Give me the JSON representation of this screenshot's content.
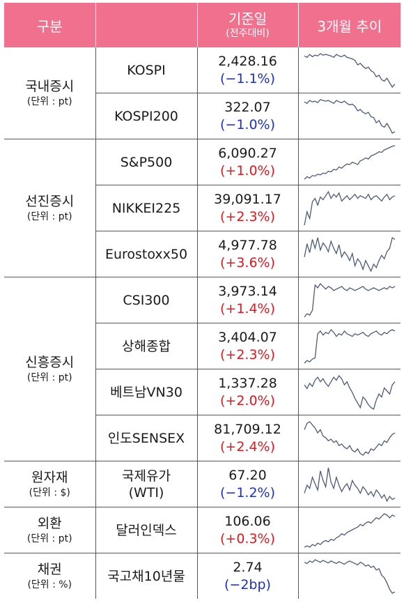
{
  "header": {
    "group_label": "구분",
    "base_label": "기준일",
    "base_sub": "(전주대비)",
    "trend_label": "3개월 추이"
  },
  "groups": {
    "domestic": {
      "name": "국내증시",
      "unit": "(단위 : pt)"
    },
    "developed": {
      "name": "선진증시",
      "unit": "(단위 : pt)"
    },
    "emerging": {
      "name": "신흥증시",
      "unit": "(단위 : pt)"
    },
    "commodity": {
      "name": "원자재",
      "unit": "(단위 : $)"
    },
    "fx": {
      "name": "외환",
      "unit": "(단위 : pt)"
    },
    "bond": {
      "name": "채권",
      "unit": "(단위 : %)"
    }
  },
  "rows": [
    {
      "name": "KOSPI",
      "value": "2,428.16",
      "change": "(−1.1%)",
      "direction": "down",
      "trend": [
        72,
        70,
        74,
        71,
        73,
        72,
        75,
        73,
        74,
        73,
        72,
        70,
        74,
        72,
        71,
        73,
        70,
        69,
        68,
        66,
        60,
        62,
        58,
        55,
        57,
        52,
        50,
        44,
        46,
        40,
        38,
        42,
        36,
        30,
        34
      ]
    },
    {
      "name": "KOSPI200",
      "value": "322.07",
      "change": "(−1.0%)",
      "direction": "down",
      "trend": [
        70,
        68,
        72,
        70,
        71,
        69,
        73,
        72,
        71,
        72,
        70,
        68,
        72,
        70,
        69,
        71,
        68,
        66,
        67,
        64,
        58,
        60,
        56,
        54,
        56,
        50,
        49,
        42,
        45,
        38,
        36,
        41,
        35,
        28,
        30
      ]
    },
    {
      "name": "S&P500",
      "value": "6,090.27",
      "change": "(+1.0%)",
      "direction": "up",
      "trend": [
        20,
        24,
        22,
        26,
        25,
        28,
        27,
        30,
        29,
        33,
        32,
        36,
        35,
        40,
        38,
        42,
        45,
        44,
        48,
        46,
        44,
        50,
        52,
        55,
        53,
        58,
        60,
        62,
        65,
        64,
        68,
        70,
        72,
        74,
        75
      ]
    },
    {
      "name": "NIKKEI225",
      "value": "39,091.17",
      "change": "(+2.3%)",
      "direction": "up",
      "trend": [
        20,
        40,
        30,
        55,
        60,
        50,
        62,
        58,
        64,
        70,
        60,
        66,
        62,
        68,
        56,
        60,
        64,
        58,
        62,
        66,
        60,
        64,
        62,
        60,
        66,
        58,
        62,
        64,
        60,
        56,
        62,
        66,
        58,
        62,
        64
      ]
    },
    {
      "name": "Eurostoxx50",
      "value": "4,977.78",
      "change": "(+3.6%)",
      "direction": "up",
      "trend": [
        40,
        55,
        45,
        60,
        50,
        62,
        48,
        56,
        52,
        46,
        58,
        50,
        44,
        54,
        40,
        46,
        42,
        36,
        44,
        30,
        38,
        34,
        26,
        36,
        30,
        24,
        32,
        28,
        36,
        42,
        38,
        46,
        50,
        62,
        60
      ]
    },
    {
      "name": "CSI300",
      "value": "3,973.14",
      "change": "(+1.4%)",
      "direction": "up",
      "trend": [
        25,
        30,
        28,
        35,
        72,
        68,
        74,
        70,
        66,
        70,
        68,
        64,
        66,
        68,
        70,
        66,
        64,
        68,
        66,
        64,
        66,
        68,
        70,
        66,
        64,
        66,
        68,
        66,
        64,
        66,
        68,
        66,
        70,
        68,
        70
      ]
    },
    {
      "name": "상해종합",
      "value": "3,404.07",
      "change": "(+2.3%)",
      "direction": "up",
      "trend": [
        22,
        26,
        24,
        28,
        30,
        66,
        70,
        64,
        68,
        66,
        72,
        68,
        62,
        66,
        64,
        70,
        66,
        64,
        62,
        66,
        64,
        66,
        68,
        64,
        62,
        66,
        68,
        70,
        66,
        64,
        68,
        66,
        70,
        72,
        70
      ]
    },
    {
      "name": "베트남VN30",
      "value": "1,337.28",
      "change": "(+2.0%)",
      "direction": "up",
      "trend": [
        60,
        55,
        62,
        58,
        66,
        70,
        64,
        68,
        62,
        58,
        64,
        70,
        66,
        72,
        68,
        60,
        64,
        56,
        50,
        42,
        36,
        30,
        44,
        40,
        34,
        30,
        28,
        40,
        48,
        44,
        56,
        52,
        48,
        60,
        64
      ]
    },
    {
      "name": "인도SENSEX",
      "value": "81,709.12",
      "change": "(+2.4%)",
      "direction": "up",
      "trend": [
        60,
        68,
        70,
        66,
        62,
        56,
        60,
        52,
        50,
        46,
        48,
        44,
        46,
        40,
        42,
        38,
        36,
        40,
        34,
        32,
        36,
        30,
        28,
        32,
        30,
        36,
        34,
        38,
        42,
        40,
        46,
        44,
        50,
        54,
        56
      ]
    },
    {
      "name": "국제유가\n(WTI)",
      "value": "67.20",
      "change": "(−1.2%)",
      "direction": "down",
      "trend": [
        40,
        50,
        46,
        60,
        52,
        44,
        68,
        56,
        48,
        72,
        54,
        46,
        60,
        50,
        42,
        48,
        52,
        44,
        56,
        50,
        46,
        40,
        48,
        44,
        38,
        42,
        36,
        44,
        40,
        34,
        38,
        30,
        36,
        32,
        34
      ]
    },
    {
      "name": "달러인덱스",
      "value": "106.06",
      "change": "(+0.3%)",
      "direction": "up",
      "trend": [
        20,
        22,
        20,
        24,
        22,
        26,
        24,
        28,
        30,
        28,
        32,
        30,
        34,
        36,
        40,
        38,
        42,
        44,
        46,
        48,
        50,
        54,
        52,
        56,
        58,
        56,
        60,
        64,
        62,
        66,
        70,
        68,
        64,
        68,
        66
      ]
    },
    {
      "name": "국고채10년물",
      "value": "2.74",
      "change": "(−2bp)",
      "direction": "down",
      "trend": [
        70,
        68,
        72,
        70,
        74,
        72,
        70,
        73,
        71,
        69,
        72,
        70,
        68,
        71,
        69,
        67,
        70,
        72,
        70,
        68,
        66,
        70,
        68,
        64,
        66,
        62,
        64,
        58,
        60,
        50,
        46,
        38,
        28,
        22,
        24
      ]
    }
  ],
  "colors": {
    "header_bg": "#f0708e",
    "up": "#e8141c",
    "down": "#1a2fd0",
    "line": "#4a5a78"
  }
}
